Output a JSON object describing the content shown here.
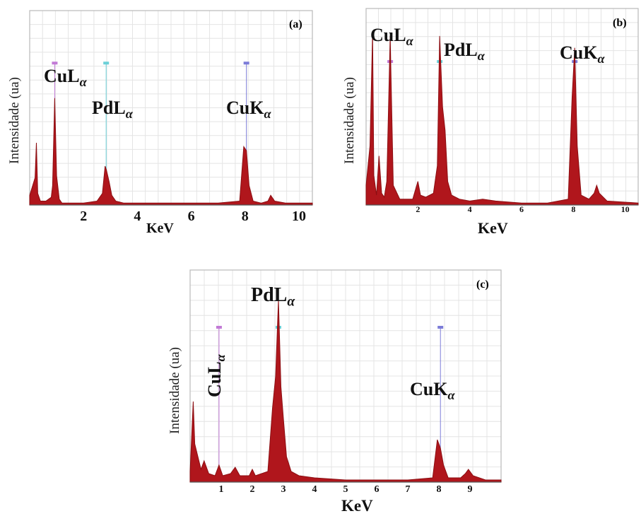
{
  "chart_data": [
    {
      "type": "area",
      "panel_label": "(a)",
      "ylabel": "Intensidade (ua)",
      "xlabel": "KeV",
      "xlim": [
        0,
        10.5
      ],
      "ylim": [
        0,
        1.0
      ],
      "xticks": [
        "2",
        "4",
        "6",
        "8",
        "10"
      ],
      "xtick_values": [
        2,
        4,
        6,
        8,
        10
      ],
      "grid": true,
      "series": [
        {
          "x": [
            0.0,
            0.2,
            0.25,
            0.3,
            0.4,
            0.6,
            0.8,
            0.85,
            0.93,
            1.0,
            1.1,
            1.2,
            1.5,
            2.0,
            2.5,
            2.7,
            2.8,
            2.85,
            2.95,
            3.05,
            3.2,
            3.5,
            5.0,
            7.0,
            7.8,
            7.95,
            8.05,
            8.15,
            8.3,
            8.6,
            8.85,
            8.95,
            9.1,
            9.5,
            10.5
          ],
          "values": [
            0.05,
            0.14,
            0.32,
            0.06,
            0.02,
            0.02,
            0.04,
            0.1,
            0.55,
            0.15,
            0.03,
            0.01,
            0.01,
            0.01,
            0.02,
            0.06,
            0.2,
            0.18,
            0.12,
            0.05,
            0.02,
            0.01,
            0.01,
            0.01,
            0.02,
            0.3,
            0.28,
            0.1,
            0.02,
            0.01,
            0.02,
            0.05,
            0.02,
            0.01,
            0.01
          ]
        }
      ],
      "peaks": [
        {
          "name": "CuL",
          "sub": "α",
          "x": 0.93
        },
        {
          "name": "PdL",
          "sub": "α",
          "x": 2.84
        },
        {
          "name": "CuK",
          "sub": "α",
          "x": 8.05
        }
      ]
    },
    {
      "type": "area",
      "panel_label": "(b)",
      "ylabel": "Intensidade (ua)",
      "xlabel": "KeV",
      "xlim": [
        0,
        10.5
      ],
      "ylim": [
        0,
        1.0
      ],
      "xticks": [
        "2",
        "4",
        "6",
        "8",
        "10"
      ],
      "xtick_values": [
        2,
        4,
        6,
        8,
        10
      ],
      "grid": true,
      "series": [
        {
          "x": [
            0.0,
            0.15,
            0.25,
            0.3,
            0.4,
            0.5,
            0.6,
            0.7,
            0.8,
            0.93,
            1.05,
            1.3,
            1.8,
            2.0,
            2.1,
            2.3,
            2.6,
            2.75,
            2.84,
            2.95,
            3.05,
            3.15,
            3.3,
            3.6,
            4.0,
            4.5,
            5.0,
            6.0,
            7.0,
            7.8,
            7.95,
            8.05,
            8.15,
            8.3,
            8.6,
            8.8,
            8.9,
            9.0,
            9.3,
            10.5
          ],
          "values": [
            0.1,
            0.3,
            0.88,
            0.15,
            0.05,
            0.25,
            0.06,
            0.04,
            0.12,
            0.86,
            0.1,
            0.03,
            0.03,
            0.12,
            0.05,
            0.04,
            0.06,
            0.2,
            0.86,
            0.5,
            0.38,
            0.12,
            0.05,
            0.03,
            0.02,
            0.03,
            0.02,
            0.01,
            0.01,
            0.03,
            0.55,
            0.8,
            0.3,
            0.05,
            0.03,
            0.06,
            0.1,
            0.06,
            0.02,
            0.01
          ]
        }
      ],
      "peaks": [
        {
          "name": "CuL",
          "sub": "α",
          "x": 0.93
        },
        {
          "name": "PdL",
          "sub": "α",
          "x": 2.84
        },
        {
          "name": "CuK",
          "sub": "α",
          "x": 8.05
        }
      ]
    },
    {
      "type": "area",
      "panel_label": "(c)",
      "ylabel": "Intensidade (ua)",
      "xlabel": "KeV",
      "xlim": [
        0,
        10
      ],
      "ylim": [
        0,
        1.0
      ],
      "xticks": [
        "1",
        "2",
        "3",
        "4",
        "5",
        "6",
        "7",
        "8",
        "9"
      ],
      "xtick_values": [
        1,
        2,
        3,
        4,
        5,
        6,
        7,
        8,
        9
      ],
      "grid": true,
      "series": [
        {
          "x": [
            0.0,
            0.1,
            0.15,
            0.25,
            0.35,
            0.45,
            0.6,
            0.8,
            0.93,
            1.05,
            1.3,
            1.45,
            1.6,
            1.9,
            2.0,
            2.1,
            2.3,
            2.5,
            2.65,
            2.75,
            2.84,
            2.92,
            3.0,
            3.1,
            3.25,
            3.5,
            4.0,
            5.0,
            7.0,
            7.8,
            7.95,
            8.05,
            8.15,
            8.3,
            8.7,
            8.85,
            8.95,
            9.1,
            9.5,
            10.0
          ],
          "values": [
            0.05,
            0.38,
            0.18,
            0.12,
            0.06,
            0.1,
            0.04,
            0.03,
            0.08,
            0.03,
            0.04,
            0.07,
            0.03,
            0.03,
            0.06,
            0.03,
            0.04,
            0.05,
            0.35,
            0.5,
            0.86,
            0.45,
            0.3,
            0.12,
            0.05,
            0.03,
            0.02,
            0.01,
            0.01,
            0.02,
            0.2,
            0.16,
            0.08,
            0.02,
            0.02,
            0.04,
            0.06,
            0.03,
            0.01,
            0.01
          ]
        }
      ],
      "peaks": [
        {
          "name": "CuL",
          "sub": "α",
          "x": 0.93
        },
        {
          "name": "PdL",
          "sub": "α",
          "x": 2.84
        },
        {
          "name": "CuK",
          "sub": "α",
          "x": 8.05
        }
      ]
    }
  ],
  "colors": {
    "fill": "#b0161c",
    "line": "#8c0e12",
    "grid": "#e4e4e4",
    "frame": "#b9b9b9"
  }
}
